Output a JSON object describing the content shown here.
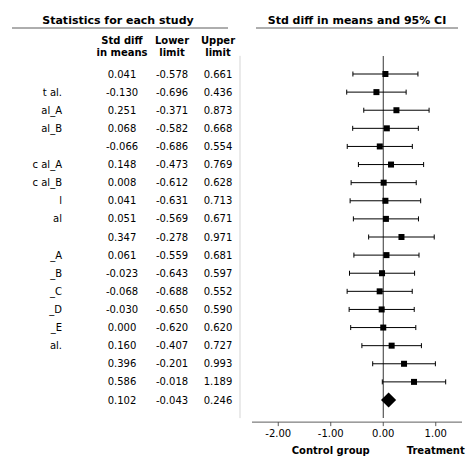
{
  "chart_data": {
    "type": "forest",
    "title": "Std diff in means and 95% CI",
    "table_title": "Statistics for each study",
    "categories": [
      null,
      "t al.",
      "al_A",
      "al_B",
      null,
      "c al_A",
      "c al_B",
      "l",
      "al",
      null,
      "_A",
      "_B",
      "_C",
      "_D",
      "_E",
      "al.",
      null,
      null,
      null
    ],
    "series": [
      {
        "name": "Std diff\nin means",
        "color": "#000000",
        "values": [
          0.041,
          -0.13,
          0.251,
          0.068,
          -0.066,
          0.148,
          0.008,
          0.041,
          0.051,
          0.347,
          0.061,
          -0.023,
          -0.068,
          -0.03,
          0.0,
          0.16,
          0.396,
          0.586,
          0.102
        ],
        "value_labels": [
          "0.041",
          "-0.130",
          "0.251",
          "0.068",
          "-0.066",
          "0.148",
          "0.008",
          "0.041",
          "0.051",
          "0.347",
          "0.061",
          "-0.023",
          "-0.068",
          "-0.030",
          "0.000",
          "0.160",
          "0.396",
          "0.586",
          "0.102"
        ]
      },
      {
        "name": "Lower\nlimit",
        "values": [
          -0.578,
          -0.696,
          -0.371,
          -0.582,
          -0.686,
          -0.473,
          -0.612,
          -0.631,
          -0.569,
          -0.278,
          -0.559,
          -0.643,
          -0.688,
          -0.65,
          -0.62,
          -0.407,
          -0.201,
          -0.018,
          -0.043
        ],
        "value_labels": [
          "-0.578",
          "-0.696",
          "-0.371",
          "-0.582",
          "-0.686",
          "-0.473",
          "-0.612",
          "-0.631",
          "-0.569",
          "-0.278",
          "-0.559",
          "-0.643",
          "-0.688",
          "-0.650",
          "-0.620",
          "-0.407",
          "-0.201",
          "-0.018",
          "-0.043"
        ]
      },
      {
        "name": "Upper\nlimit",
        "values": [
          0.661,
          0.436,
          0.873,
          0.668,
          0.554,
          0.769,
          0.628,
          0.713,
          0.671,
          0.971,
          0.681,
          0.597,
          0.552,
          0.59,
          0.62,
          0.727,
          0.993,
          1.189,
          0.246
        ],
        "value_labels": [
          "0.661",
          "0.436",
          "0.873",
          "0.668",
          "0.554",
          "0.769",
          "0.628",
          "0.713",
          "0.671",
          "0.971",
          "0.681",
          "0.597",
          "0.552",
          "0.590",
          "0.620",
          "0.727",
          "0.993",
          "1.189",
          "0.246"
        ]
      }
    ],
    "row_markers": [
      "square",
      "square",
      "square",
      "square",
      "square",
      "square",
      "square",
      "square",
      "square",
      "square",
      "square",
      "square",
      "square",
      "square",
      "square",
      "square",
      "square",
      "square",
      "diamond"
    ],
    "xlim": [
      -2.5,
      1.5
    ],
    "xticks": [
      {
        "value": -2.0,
        "label": "-2.00"
      },
      {
        "value": -1.0,
        "label": "-1.00"
      },
      {
        "value": 0.0,
        "label": "0.00"
      },
      {
        "value": 1.0,
        "label": "1.00"
      }
    ],
    "reference_line": 0.0,
    "annotations": [
      {
        "text": "Control group",
        "x": -1.0
      },
      {
        "text": "Treatment",
        "x": 1.0
      }
    ]
  }
}
